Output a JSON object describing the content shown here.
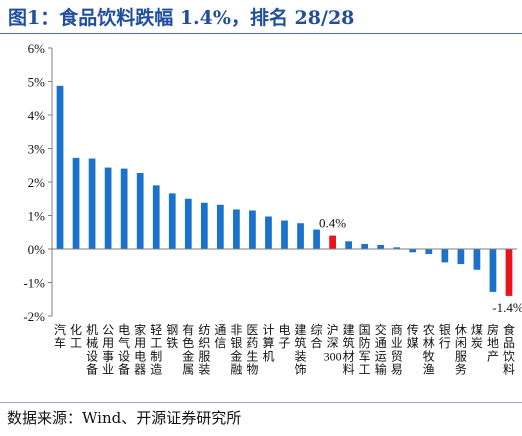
{
  "title": "图1：食品饮料跌幅 1.4%，排名 28/28",
  "source": "数据来源：Wind、开源证券研究所",
  "colors": {
    "default_bar": "#1a73c8",
    "highlight_bar": "#e8141c",
    "title": "#1f4e9e"
  },
  "chart_data": {
    "type": "bar",
    "categories": [
      "汽车",
      "化工",
      "机械设备",
      "公用事业",
      "电气设备",
      "家用电器",
      "轻工制造",
      "钢铁",
      "有色金属",
      "纺织服装",
      "通信",
      "非银金融",
      "医药生物",
      "计算机",
      "电子",
      "建筑装饰",
      "综合",
      "沪深300",
      "建筑材料",
      "国防军工",
      "交通运输",
      "商业贸易",
      "传媒",
      "农林牧渔",
      "银行",
      "休闲服务",
      "煤炭",
      "房地产",
      "食品饮料"
    ],
    "values": [
      4.87,
      2.72,
      2.7,
      2.43,
      2.4,
      2.27,
      1.9,
      1.66,
      1.5,
      1.38,
      1.32,
      1.18,
      1.15,
      0.97,
      0.85,
      0.77,
      0.58,
      0.4,
      0.23,
      0.15,
      0.12,
      0.05,
      -0.1,
      -0.15,
      -0.4,
      -0.45,
      -0.62,
      -1.28,
      -1.4
    ],
    "highlight": [
      "沪深300",
      "食品饮料"
    ],
    "ylim": [
      -2,
      6
    ],
    "yticks": [
      "-2%",
      "-1%",
      "0%",
      "1%",
      "2%",
      "3%",
      "4%",
      "5%",
      "6%"
    ],
    "annotations": [
      {
        "category": "沪深300",
        "text": "0.4%"
      },
      {
        "category": "食品饮料",
        "text": "-1.4%"
      }
    ]
  }
}
